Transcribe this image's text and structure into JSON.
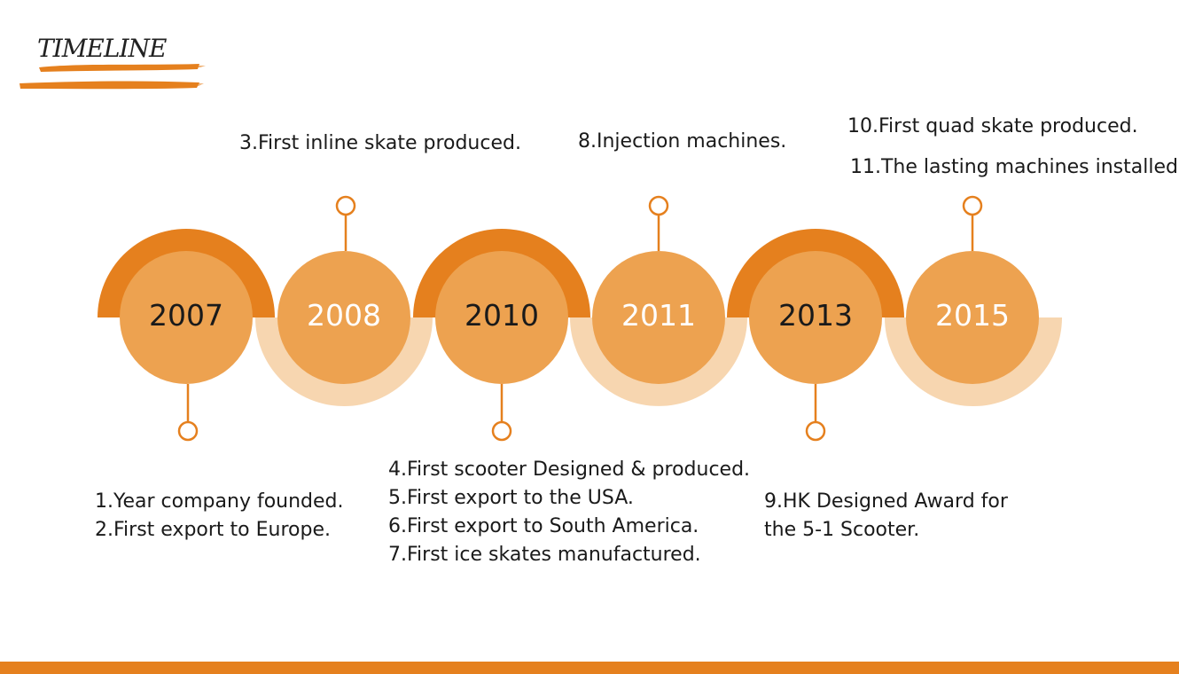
{
  "title": "TIMELINE",
  "colors": {
    "accent": "#e5801e",
    "circle": "#eda250",
    "pale": "#f7d6b0",
    "text_dark": "#1a1a1a",
    "text_light": "#ffffff"
  },
  "years": [
    {
      "label": "2007",
      "text_color": "dark"
    },
    {
      "label": "2008",
      "text_color": "light"
    },
    {
      "label": "2010",
      "text_color": "dark"
    },
    {
      "label": "2011",
      "text_color": "light"
    },
    {
      "label": "2013",
      "text_color": "dark"
    },
    {
      "label": "2015",
      "text_color": "light"
    }
  ],
  "notes": {
    "y2007": [
      "1.Year company founded.",
      "2.First export to Europe."
    ],
    "y2008": [
      "3.First inline skate produced."
    ],
    "y2010": [
      "4.First scooter Designed & produced.",
      "5.First export to the USA.",
      "6.First export to South America.",
      "7.First ice skates manufactured."
    ],
    "y2011": [
      "8.Injection machines."
    ],
    "y2013": [
      "9.HK Designed Award for",
      "the 5-1 Scooter."
    ],
    "y2015": [
      "10.First quad skate produced.",
      "11.The lasting machines installed."
    ]
  }
}
